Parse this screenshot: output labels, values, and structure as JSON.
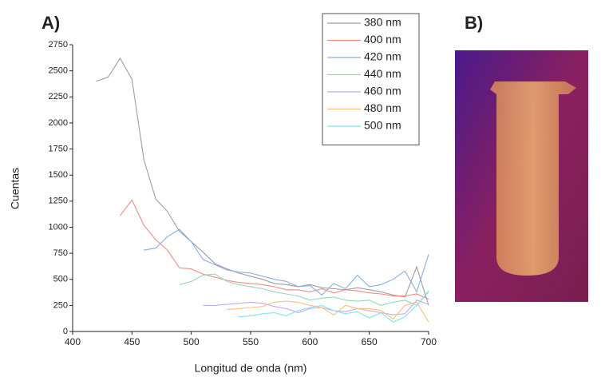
{
  "panels": {
    "a": "A)",
    "b": "B)"
  },
  "chart_data": {
    "type": "line",
    "xlabel": "Longitud de onda (nm)",
    "ylabel": "Cuentas",
    "x": [
      420,
      430,
      440,
      450,
      460,
      470,
      480,
      490,
      500,
      510,
      520,
      530,
      540,
      550,
      560,
      570,
      580,
      590,
      600,
      610,
      620,
      630,
      640,
      650,
      660,
      670,
      680,
      690,
      700
    ],
    "series": [
      {
        "name": "380 nm",
        "color": "#9e9e9e",
        "values": [
          2400,
          2440,
          2620,
          2420,
          1650,
          1270,
          1150,
          960,
          860,
          760,
          650,
          600,
          560,
          530,
          500,
          460,
          450,
          430,
          450,
          420,
          410,
          400,
          420,
          400,
          380,
          350,
          330,
          620,
          250
        ]
      },
      {
        "name": "400 nm",
        "color": "#f08a84",
        "values": [
          null,
          null,
          1110,
          1260,
          1020,
          880,
          780,
          610,
          600,
          550,
          520,
          490,
          470,
          460,
          450,
          430,
          400,
          400,
          380,
          410,
          370,
          400,
          390,
          370,
          360,
          340,
          340,
          360,
          310
        ]
      },
      {
        "name": "420 nm",
        "color": "#86aee6",
        "values": [
          null,
          null,
          null,
          null,
          780,
          800,
          910,
          980,
          860,
          690,
          640,
          590,
          570,
          560,
          530,
          500,
          480,
          430,
          440,
          350,
          460,
          410,
          540,
          430,
          450,
          500,
          580,
          380,
          740
        ]
      },
      {
        "name": "440 nm",
        "color": "#94d8b2",
        "values": [
          null,
          null,
          null,
          null,
          null,
          null,
          null,
          450,
          480,
          540,
          550,
          480,
          450,
          430,
          410,
          380,
          360,
          340,
          300,
          320,
          330,
          300,
          290,
          300,
          250,
          280,
          300,
          250,
          380
        ]
      },
      {
        "name": "460 nm",
        "color": "#c9a8f0",
        "values": [
          null,
          null,
          null,
          null,
          null,
          null,
          null,
          null,
          null,
          250,
          250,
          260,
          270,
          280,
          270,
          240,
          220,
          180,
          220,
          230,
          200,
          190,
          220,
          200,
          180,
          160,
          170,
          300,
          260
        ]
      },
      {
        "name": "480 nm",
        "color": "#f4c27e",
        "values": [
          null,
          null,
          null,
          null,
          null,
          null,
          null,
          null,
          null,
          null,
          null,
          210,
          220,
          230,
          240,
          280,
          290,
          280,
          250,
          230,
          160,
          250,
          220,
          220,
          200,
          120,
          250,
          280,
          90
        ]
      },
      {
        "name": "500 nm",
        "color": "#7ee4ee",
        "values": [
          null,
          null,
          null,
          null,
          null,
          null,
          null,
          null,
          null,
          null,
          null,
          null,
          140,
          150,
          170,
          180,
          150,
          200,
          230,
          250,
          200,
          170,
          190,
          130,
          180,
          90,
          140,
          250,
          390
        ]
      }
    ],
    "xlim": [
      400,
      700
    ],
    "xticks": [
      400,
      450,
      500,
      550,
      600,
      650,
      700
    ],
    "ylim": [
      0,
      2750
    ],
    "yticks": [
      0,
      250,
      500,
      750,
      1000,
      1250,
      1500,
      1750,
      2000,
      2250,
      2500,
      2750
    ],
    "legend": "upper right"
  }
}
